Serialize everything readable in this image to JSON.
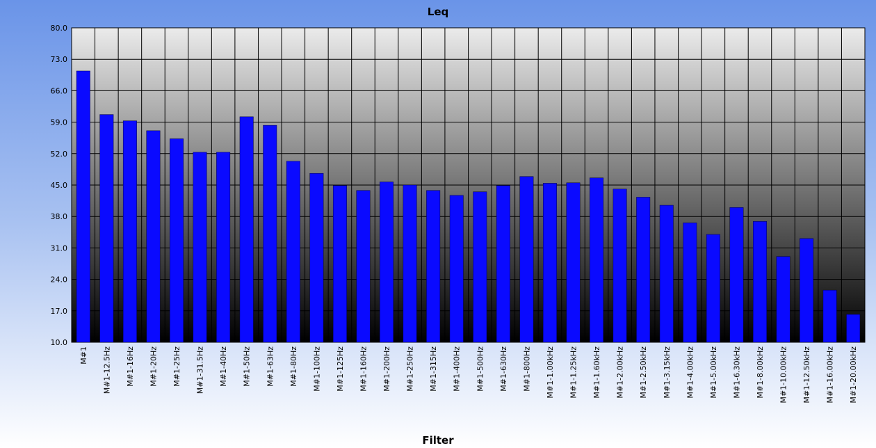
{
  "chart_data": {
    "type": "bar",
    "title": "Leq",
    "xlabel": "Filter",
    "ylabel": "",
    "ylim": [
      10,
      80
    ],
    "yticks": [
      "10.0",
      "17.0",
      "24.0",
      "31.0",
      "38.0",
      "45.0",
      "52.0",
      "59.0",
      "66.0",
      "73.0",
      "80.0"
    ],
    "grid": true,
    "legend": "none",
    "categories": [
      "M#1",
      "M#1-12.5Hz",
      "M#1-16Hz",
      "M#1-20Hz",
      "M#1-25Hz",
      "M#1-31.5Hz",
      "M#1-40Hz",
      "M#1-50Hz",
      "M#1-63Hz",
      "M#1-80Hz",
      "M#1-100Hz",
      "M#1-125Hz",
      "M#1-160Hz",
      "M#1-200Hz",
      "M#1-250Hz",
      "M#1-315Hz",
      "M#1-400Hz",
      "M#1-500Hz",
      "M#1-630Hz",
      "M#1-800Hz",
      "M#1-1.00kHz",
      "M#1-1.25kHz",
      "M#1-1.60kHz",
      "M#1-2.00kHz",
      "M#1-2.50kHz",
      "M#1-3.15kHz",
      "M#1-4.00kHz",
      "M#1-5.00kHz",
      "M#1-6.30kHz",
      "M#1-8.00kHz",
      "M#1-10.00kHz",
      "M#1-12.50kHz",
      "M#1-16.00kHz",
      "M#1-20.00kHz"
    ],
    "values": [
      70.4,
      60.7,
      59.3,
      57.1,
      55.3,
      52.3,
      52.3,
      60.2,
      58.3,
      50.3,
      47.6,
      44.9,
      43.8,
      45.7,
      45.0,
      43.8,
      42.7,
      43.5,
      44.9,
      46.9,
      45.4,
      45.5,
      46.6,
      44.1,
      42.3,
      40.5,
      36.6,
      34.0,
      40.0,
      36.9,
      29.1,
      33.1,
      21.6,
      16.2
    ],
    "colors": {
      "bar": "#0a0aff",
      "bar_edge": "#000044",
      "plot_top": "#ebebeb",
      "plot_bottom": "#000000",
      "grid": "#000000"
    }
  }
}
